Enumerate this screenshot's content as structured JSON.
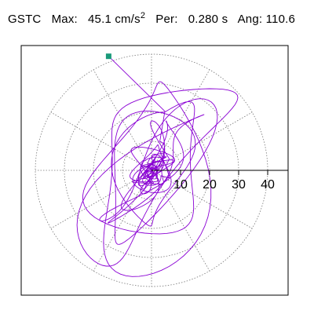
{
  "header": {
    "station": "GSTC",
    "max_label": "Max:",
    "max_value": "45.1 cm/s",
    "max_exp": "2",
    "per_label": "Per:",
    "per_value": "0.280 s",
    "ang_label": "Ang:",
    "ang_value": "110.6"
  },
  "colors": {
    "trace": "#8a00d4",
    "marker": "#1a9a7a",
    "grid": "#777777",
    "axis": "#000000"
  },
  "chart_data": {
    "type": "scatter",
    "subtype": "polar particle-motion orbit",
    "radial_ticks": [
      10,
      20,
      30,
      40
    ],
    "radial_range": [
      0,
      50
    ],
    "angular_gridline_step_deg": 30,
    "grid": "dotted",
    "max_point": {
      "value": 45.1,
      "unit": "cm/s2",
      "angle_deg": 110.6
    },
    "period_s": 0.28
  }
}
